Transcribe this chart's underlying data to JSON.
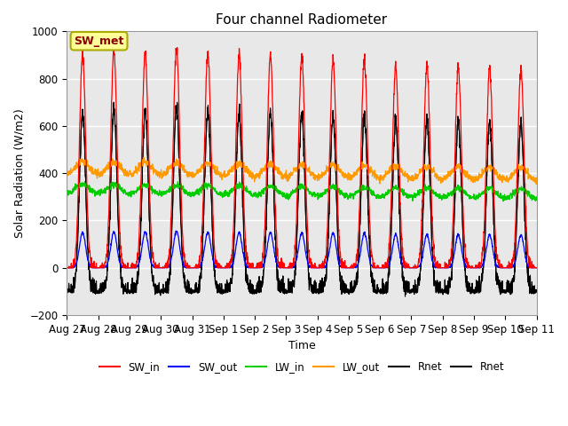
{
  "title": "Four channel Radiometer",
  "xlabel": "Time",
  "ylabel": "Solar Radiation (W/m2)",
  "ylim": [
    -200,
    1000
  ],
  "background_color": "#e8e8e8",
  "x_tick_labels": [
    "Aug 27",
    "Aug 28",
    "Aug 29",
    "Aug 30",
    "Aug 31",
    "Sep 1",
    "Sep 2",
    "Sep 3",
    "Sep 4",
    "Sep 5",
    "Sep 6",
    "Sep 7",
    "Sep 8",
    "Sep 9",
    "Sep 10",
    "Sep 11"
  ],
  "annotation_text": "SW_met",
  "annotation_color": "#8b0000",
  "annotation_bg": "#ffff99",
  "colors": {
    "SW_in": "#ff0000",
    "SW_out": "#0000ff",
    "LW_in": "#00cc00",
    "LW_out": "#ff9900",
    "Rnet1": "#000000",
    "Rnet2": "#000000"
  },
  "legend_entries": [
    "SW_in",
    "SW_out",
    "LW_in",
    "LW_out",
    "Rnet",
    "Rnet"
  ],
  "sw_in_peaks": [
    900,
    920,
    910,
    930,
    910,
    900,
    900,
    890,
    880,
    885,
    850,
    855,
    850,
    845,
    840
  ],
  "days": 15,
  "night_rnet": -100,
  "lw_in_base": 310,
  "lw_out_base": 390
}
